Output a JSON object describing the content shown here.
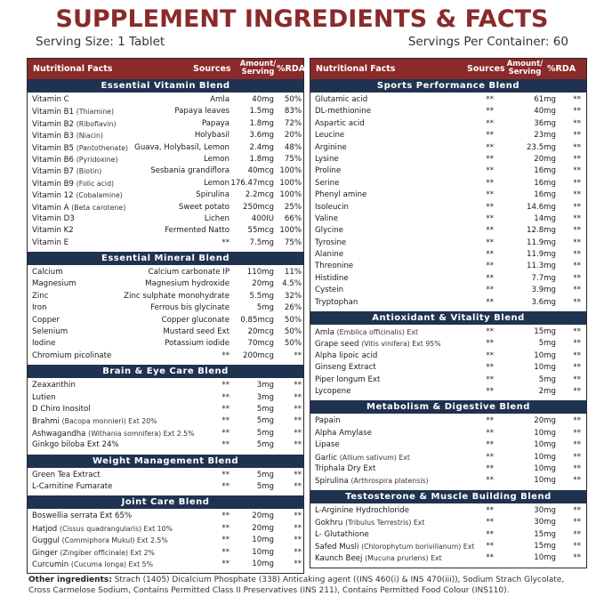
{
  "title": "SUPPLEMENT INGREDIENTS & FACTS",
  "serving_size": "Serving Size: 1 Tablet",
  "servings_per_container": "Servings Per Container: 60",
  "headers": {
    "facts": "Nutritional Facts",
    "sources": "Sources",
    "amount_1": "Amount/",
    "amount_2": "Serving",
    "rda": "%RDA"
  },
  "left": [
    {
      "title": "Essential Vitamin Blend",
      "rows": [
        {
          "name": "Vitamin C",
          "sub": "",
          "source": "Amla",
          "amount": "40mg",
          "rda": "50%"
        },
        {
          "name": "Vitamin B1",
          "sub": "(Thiamine)",
          "source": "Papaya leaves",
          "amount": "1.5mg",
          "rda": "83%"
        },
        {
          "name": "Vitamin B2",
          "sub": "(Riboflavin)",
          "source": "Papaya",
          "amount": "1.8mg",
          "rda": "72%"
        },
        {
          "name": "Vitamin B3",
          "sub": "(Niacin)",
          "source": "Holybasil",
          "amount": "3.6mg",
          "rda": "20%"
        },
        {
          "name": "Vitamin B5",
          "sub": "(Pantothenate)",
          "source": "Guava, Holybasil, Lemon",
          "amount": "2.4mg",
          "rda": "48%"
        },
        {
          "name": "Vitamin B6",
          "sub": "(Pyridoxine)",
          "source": "Lemon",
          "amount": "1.8mg",
          "rda": "75%"
        },
        {
          "name": "Vitamin B7",
          "sub": "(Biotin)",
          "source": "Sesbania grandiflora",
          "amount": "40mcg",
          "rda": "100%"
        },
        {
          "name": "Vitamin B9",
          "sub": "(Folic acid)",
          "source": "Lemon",
          "amount": "176.47mcg",
          "rda": "100%"
        },
        {
          "name": "Vitamin 12",
          "sub": "(Cobalamine)",
          "source": "Spirulina",
          "amount": "2.2mcg",
          "rda": "100%"
        },
        {
          "name": "Vitamin A",
          "sub": "(Beta carotene)",
          "source": "Sweet potato",
          "amount": "250mcg",
          "rda": "25%"
        },
        {
          "name": "Vitamin D3",
          "sub": "",
          "source": "Lichen",
          "amount": "400IU",
          "rda": "66%"
        },
        {
          "name": "Vitamin K2",
          "sub": "",
          "source": "Fermented Natto",
          "amount": "55mcg",
          "rda": "100%"
        },
        {
          "name": "Vitamin E",
          "sub": "",
          "source": "**",
          "amount": "7.5mg",
          "rda": "75%"
        }
      ]
    },
    {
      "title": "Essential Mineral Blend",
      "rows": [
        {
          "name": "Calcium",
          "sub": "",
          "source": "Calcium carbonate IP",
          "amount": "110mg",
          "rda": "11%"
        },
        {
          "name": "Magnesium",
          "sub": "",
          "source": "Magnesium hydroxide",
          "amount": "20mg",
          "rda": "4.5%"
        },
        {
          "name": "Zinc",
          "sub": "",
          "source": "Zinc sulphate monohydrate",
          "amount": "5.5mg",
          "rda": "32%"
        },
        {
          "name": "Iron",
          "sub": "",
          "source": "Ferrous bis glycinate",
          "amount": "5mg",
          "rda": "26%"
        },
        {
          "name": "Copper",
          "sub": "",
          "source": "Copper gluconate",
          "amount": "0.85mcg",
          "rda": "50%"
        },
        {
          "name": "Selenium",
          "sub": "",
          "source": "Mustard seed Ext",
          "amount": "20mcg",
          "rda": "50%"
        },
        {
          "name": "Iodine",
          "sub": "",
          "source": "Potassium iodide",
          "amount": "70mcg",
          "rda": "50%"
        },
        {
          "name": "Chromium picolinate",
          "sub": "",
          "source": "**",
          "amount": "200mcg",
          "rda": "**"
        }
      ]
    },
    {
      "title": "Brain & Eye Care Blend",
      "rows": [
        {
          "name": "Zeaxanthin",
          "sub": "",
          "source": "**",
          "amount": "3mg",
          "rda": "**"
        },
        {
          "name": "Lutien",
          "sub": "",
          "source": "**",
          "amount": "3mg",
          "rda": "**"
        },
        {
          "name": "D Chiro Inositol",
          "sub": "",
          "source": "**",
          "amount": "5mg",
          "rda": "**"
        },
        {
          "name": "Brahmi",
          "sub": "(Bacopa monnieri) Ext 20%",
          "source": "**",
          "amount": "5mg",
          "rda": "**"
        },
        {
          "name": "Ashwagandha",
          "sub": "(Withania somnifera) Ext 2.5%",
          "source": "**",
          "amount": "5mg",
          "rda": "**"
        },
        {
          "name": "Ginkgo biloba Ext 24%",
          "sub": "",
          "source": "**",
          "amount": "5mg",
          "rda": "**"
        }
      ]
    },
    {
      "title": "Weight Management Blend",
      "rows": [
        {
          "name": "Green Tea Extract",
          "sub": "",
          "source": "**",
          "amount": "5mg",
          "rda": "**"
        },
        {
          "name": "L-Carnitine Fumarate",
          "sub": "",
          "source": "**",
          "amount": "5mg",
          "rda": "**"
        }
      ]
    },
    {
      "title": "Joint Care Blend",
      "rows": [
        {
          "name": "Boswellia serrata Ext 65%",
          "sub": "",
          "source": "**",
          "amount": "20mg",
          "rda": "**"
        },
        {
          "name": "Hatjod",
          "sub": "(Cissus quadrangularis) Ext 10%",
          "source": "**",
          "amount": "20mg",
          "rda": "**"
        },
        {
          "name": "Guggul",
          "sub": "(Commiphora Mukul) Ext 2.5%",
          "source": "**",
          "amount": "10mg",
          "rda": "**"
        },
        {
          "name": "Ginger",
          "sub": "(Zingiber officinale) Ext 2%",
          "source": "**",
          "amount": "10mg",
          "rda": "**"
        },
        {
          "name": "Curcumin",
          "sub": "(Cucuma longa) Ext 5%",
          "source": "**",
          "amount": "10mg",
          "rda": "**"
        }
      ]
    }
  ],
  "right": [
    {
      "title": "Sports Performance Blend",
      "rows": [
        {
          "name": "Glutamic acid",
          "sub": "",
          "source": "**",
          "amount": "61mg",
          "rda": "**"
        },
        {
          "name": "DL-methionine",
          "sub": "",
          "source": "**",
          "amount": "40mg",
          "rda": "**"
        },
        {
          "name": "Aspartic acid",
          "sub": "",
          "source": "**",
          "amount": "36mg",
          "rda": "**"
        },
        {
          "name": "Leucine",
          "sub": "",
          "source": "**",
          "amount": "23mg",
          "rda": "**"
        },
        {
          "name": "Arginine",
          "sub": "",
          "source": "**",
          "amount": "23.5mg",
          "rda": "**"
        },
        {
          "name": "Lysine",
          "sub": "",
          "source": "**",
          "amount": "20mg",
          "rda": "**"
        },
        {
          "name": "Proline",
          "sub": "",
          "source": "**",
          "amount": "16mg",
          "rda": "**"
        },
        {
          "name": "Serine",
          "sub": "",
          "source": "**",
          "amount": "16mg",
          "rda": "**"
        },
        {
          "name": "Phenyl amine",
          "sub": "",
          "source": "**",
          "amount": "16mg",
          "rda": "**"
        },
        {
          "name": "Isoleucin",
          "sub": "",
          "source": "**",
          "amount": "14.6mg",
          "rda": "**"
        },
        {
          "name": "Valine",
          "sub": "",
          "source": "**",
          "amount": "14mg",
          "rda": "**"
        },
        {
          "name": "Glycine",
          "sub": "",
          "source": "**",
          "amount": "12.8mg",
          "rda": "**"
        },
        {
          "name": "Tyrosine",
          "sub": "",
          "source": "**",
          "amount": "11.9mg",
          "rda": "**"
        },
        {
          "name": "Alanine",
          "sub": "",
          "source": "**",
          "amount": "11.9mg",
          "rda": "**"
        },
        {
          "name": "Threonine",
          "sub": "",
          "source": "**",
          "amount": "11.3mg",
          "rda": "**"
        },
        {
          "name": "Histidine",
          "sub": "",
          "source": "**",
          "amount": "7.7mg",
          "rda": "**"
        },
        {
          "name": "Cystein",
          "sub": "",
          "source": "**",
          "amount": "3.9mg",
          "rda": "**"
        },
        {
          "name": "Tryptophan",
          "sub": "",
          "source": "**",
          "amount": "3.6mg",
          "rda": "**"
        }
      ]
    },
    {
      "title": "Antioxidant & Vitality Blend",
      "rows": [
        {
          "name": "Amla",
          "sub": "(Emblica officinalis) Ext",
          "source": "**",
          "amount": "15mg",
          "rda": "**"
        },
        {
          "name": "Grape seed",
          "sub": "(Vitis vinifera) Ext 95%",
          "source": "**",
          "amount": "5mg",
          "rda": "**"
        },
        {
          "name": "Alpha lipoic acid",
          "sub": "",
          "source": "**",
          "amount": "10mg",
          "rda": "**"
        },
        {
          "name": "Ginseng Extract",
          "sub": "",
          "source": "**",
          "amount": "10mg",
          "rda": "**"
        },
        {
          "name": "Piper longum Ext",
          "sub": "",
          "source": "**",
          "amount": "5mg",
          "rda": "**"
        },
        {
          "name": "Lycopene",
          "sub": "",
          "source": "**",
          "amount": "2mg",
          "rda": "**"
        }
      ]
    },
    {
      "title": "Metabolism & Digestive Blend",
      "rows": [
        {
          "name": "Papain",
          "sub": "",
          "source": "**",
          "amount": "20mg",
          "rda": "**"
        },
        {
          "name": "Alpha Amylase",
          "sub": "",
          "source": "**",
          "amount": "10mg",
          "rda": "**"
        },
        {
          "name": "Lipase",
          "sub": "",
          "source": "**",
          "amount": "10mg",
          "rda": "**"
        },
        {
          "name": "Garlic",
          "sub": "(Allium sativum) Ext",
          "source": "**",
          "amount": "10mg",
          "rda": "**"
        },
        {
          "name": "Triphala Dry Ext",
          "sub": "",
          "source": "**",
          "amount": "10mg",
          "rda": "**"
        },
        {
          "name": "Spirulina",
          "sub": "(Arthrospira platensis)",
          "source": "**",
          "amount": "10mg",
          "rda": "**"
        }
      ]
    },
    {
      "title": "Testosterone & Muscle Building Blend",
      "rows": [
        {
          "name": "L-Arginine Hydrochloride",
          "sub": "",
          "source": "**",
          "amount": "30mg",
          "rda": "**"
        },
        {
          "name": "Gokhru",
          "sub": "(Tribulus Terrestris) Ext",
          "source": "**",
          "amount": "30mg",
          "rda": "**"
        },
        {
          "name": "L- Glutathione",
          "sub": "",
          "source": "**",
          "amount": "15mg",
          "rda": "**"
        },
        {
          "name": "Safed Musli",
          "sub": "(Chlorophytum borivilianum) Ext",
          "source": "**",
          "amount": "15mg",
          "rda": "**"
        },
        {
          "name": "Kaunch Beej",
          "sub": "(Mucuna pruriens) Ext",
          "source": "**",
          "amount": "10mg",
          "rda": "**"
        }
      ]
    }
  ],
  "other_label": "Other ingredients:",
  "other_text": " Strach (1405) Dicalcium Phosphate (338) Anticaking agent ((INS 460(i) & INS 470(iii)), Sodium Strach Glycolate, Cross Carmelose Sodium, Contains Permitted Class II Preservatives (INS 211), Contains Permitted Food Colour (INS110)."
}
